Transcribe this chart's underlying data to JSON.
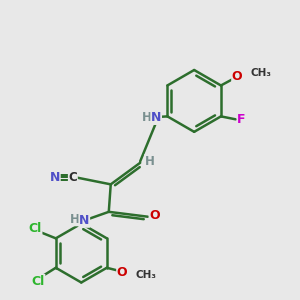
{
  "bg_color": "#e8e8e8",
  "bond_color": "#2d6e2d",
  "bond_width": 1.8,
  "atom_colors": {
    "N": "#5050c8",
    "O": "#cc0000",
    "F": "#cc00cc",
    "Cl": "#2db52d",
    "C": "#2d2d2d",
    "H": "#7a9090"
  }
}
